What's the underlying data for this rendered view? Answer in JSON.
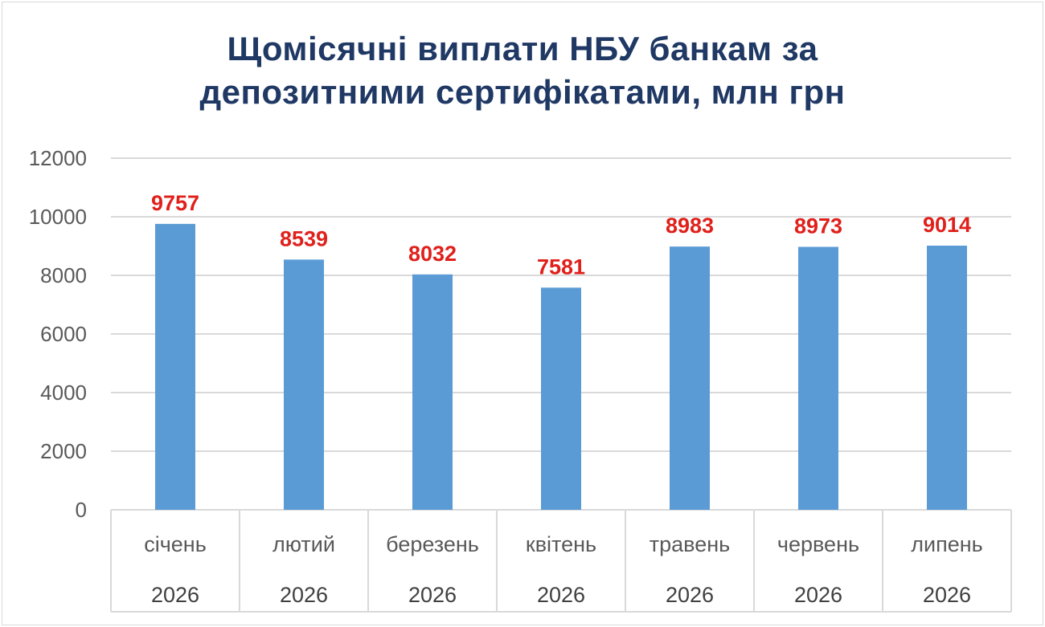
{
  "chart_data": {
    "type": "bar",
    "title": [
      "Щомісячні виплати НБУ банкам за",
      "депозитними сертифікатами, млн грн"
    ],
    "categories": [
      "січень",
      "лютий",
      "березень",
      "квітень",
      "травень",
      "червень",
      "липень"
    ],
    "category_group": "2026",
    "values": [
      9757,
      8539,
      8032,
      7581,
      8983,
      8973,
      9014
    ],
    "yticks": [
      "0",
      "2000",
      "4000",
      "6000",
      "8000",
      "10000",
      "12000"
    ],
    "ylim": [
      0,
      12000
    ],
    "grid": true,
    "legend": "none",
    "xlabel": "",
    "ylabel": "",
    "colors": {
      "bar": "#5b9bd5",
      "data_label": "#e0201b",
      "title": "#1f3864",
      "grid": "#d9d9d9"
    }
  }
}
